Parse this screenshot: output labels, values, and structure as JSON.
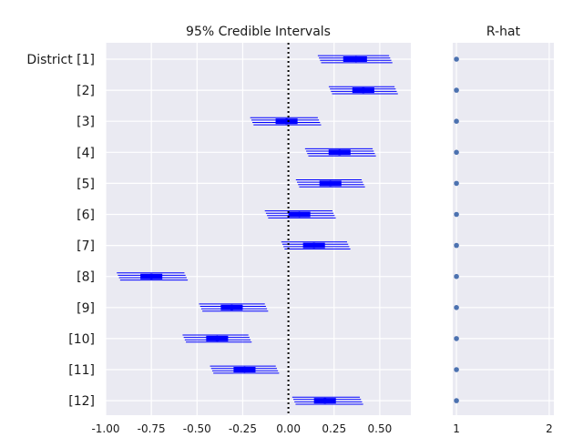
{
  "chart_data": [
    {
      "type": "forest",
      "title": "95% Credible Intervals",
      "row_labels": [
        "District [1]",
        "[2]",
        "[3]",
        "[4]",
        "[5]",
        "[6]",
        "[7]",
        "[8]",
        "[9]",
        "[10]",
        "[11]",
        "[12]"
      ],
      "xlim": [
        -1.0,
        0.67
      ],
      "xticks": [
        -1.0,
        -0.75,
        -0.5,
        -0.25,
        0.0,
        0.25,
        0.5
      ],
      "xtick_labels": [
        "-1.00",
        "-0.75",
        "-0.50",
        "-0.25",
        "0.00",
        "0.25",
        "0.50"
      ],
      "reference_line": 0.0,
      "grid": true,
      "chains": 4,
      "series": [
        {
          "mean": 0.37,
          "q25": 0.3,
          "q75": 0.43,
          "lo": 0.17,
          "hi": 0.56
        },
        {
          "mean": 0.41,
          "q25": 0.35,
          "q75": 0.47,
          "lo": 0.23,
          "hi": 0.59
        },
        {
          "mean": -0.01,
          "q25": -0.07,
          "q75": 0.05,
          "lo": -0.2,
          "hi": 0.17
        },
        {
          "mean": 0.28,
          "q25": 0.22,
          "q75": 0.34,
          "lo": 0.1,
          "hi": 0.47
        },
        {
          "mean": 0.23,
          "q25": 0.17,
          "q75": 0.29,
          "lo": 0.05,
          "hi": 0.41
        },
        {
          "mean": 0.06,
          "q25": 0.0,
          "q75": 0.12,
          "lo": -0.12,
          "hi": 0.25
        },
        {
          "mean": 0.14,
          "q25": 0.08,
          "q75": 0.2,
          "lo": -0.03,
          "hi": 0.33
        },
        {
          "mean": -0.75,
          "q25": -0.81,
          "q75": -0.69,
          "lo": -0.93,
          "hi": -0.56
        },
        {
          "mean": -0.31,
          "q25": -0.37,
          "q75": -0.25,
          "lo": -0.48,
          "hi": -0.12
        },
        {
          "mean": -0.39,
          "q25": -0.45,
          "q75": -0.33,
          "lo": -0.57,
          "hi": -0.21
        },
        {
          "mean": -0.24,
          "q25": -0.3,
          "q75": -0.18,
          "lo": -0.42,
          "hi": -0.06
        },
        {
          "mean": 0.2,
          "q25": 0.14,
          "q75": 0.26,
          "lo": 0.03,
          "hi": 0.4
        }
      ]
    },
    {
      "type": "scatter",
      "title": "R-hat",
      "xlim": [
        0.96,
        2.05
      ],
      "xticks": [
        1,
        2
      ],
      "xtick_labels": [
        "1",
        "2"
      ],
      "grid": true,
      "values": [
        1,
        1,
        1,
        1,
        1,
        1,
        1,
        1,
        1,
        1,
        1,
        1
      ]
    }
  ],
  "colors": {
    "background": "#eaeaf2",
    "grid": "#ffffff",
    "interval": "#0000ff",
    "rhat_point": "#4c72b0",
    "reference_line": "#000000"
  }
}
